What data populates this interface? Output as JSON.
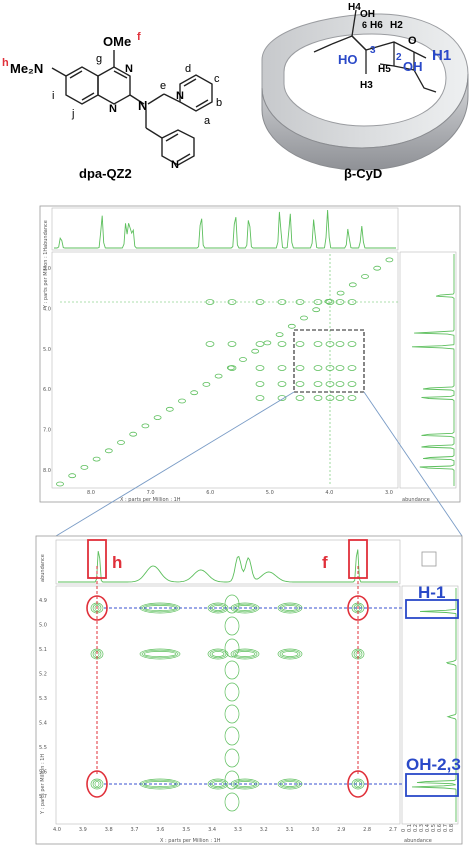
{
  "molecules": {
    "left_name": "dpa-QZ2",
    "right_name": "β-CyD",
    "left_groups": {
      "me2n": "Me₂N",
      "me2n_tag": "h",
      "ome": "OMe",
      "ome_tag": "f",
      "n_atom": "N",
      "pos_g": "g",
      "pos_i": "i",
      "pos_j": "j",
      "pos_e": "e",
      "pos_d": "d",
      "pos_c": "c",
      "pos_b": "b",
      "pos_a": "a"
    },
    "right_atoms": {
      "h4": "H4",
      "oh": "OH",
      "h6": "H6",
      "h6b": "6",
      "h2": "H2",
      "o": "O",
      "h1": "H1",
      "ho": "HO",
      "c3": "3",
      "c2": "2",
      "oh2": "OH",
      "h3": "H3",
      "h5": "H5"
    }
  },
  "spectrum_top": {
    "x_axis_label": "X : parts per Million : 1H",
    "y_axis_label": "Y : parts per Million : 1H",
    "abundance_label": "abundance",
    "x_ticks": [
      "8.0",
      "7.0",
      "6.0",
      "5.0",
      "4.0",
      "3.0"
    ],
    "y_ticks": [
      "3.0",
      "4.0",
      "5.0",
      "6.0",
      "7.0",
      "8.0"
    ]
  },
  "spectrum_zoom": {
    "x_axis_label": "X : parts per Million : 1H",
    "y_axis_label": "Y : parts per Million : 1H",
    "abundance_label": "abundance",
    "x_ticks": [
      "4.0",
      "3.9",
      "3.8",
      "3.7",
      "3.6",
      "3.5",
      "3.4",
      "3.3",
      "3.2",
      "3.1",
      "3.0",
      "2.9",
      "2.8",
      "2.7"
    ],
    "y_ticks": [
      "4.9",
      "5.0",
      "5.1",
      "5.2",
      "5.3",
      "5.4",
      "5.5",
      "5.6",
      "5.7"
    ],
    "right_ticks": [
      "0",
      "0.1",
      "0.2",
      "0.3",
      "0.4",
      "0.5",
      "0.6",
      "0.7",
      "0.8"
    ],
    "annotations": {
      "h": "h",
      "f": "f",
      "h1": "H-1",
      "oh23": "OH-2,3"
    }
  },
  "colors": {
    "spectrum_green": "#5dbf5d",
    "annotation_red": "#e0303a",
    "annotation_blue": "#2a49c8",
    "guide_blue": "#3a50d0"
  }
}
